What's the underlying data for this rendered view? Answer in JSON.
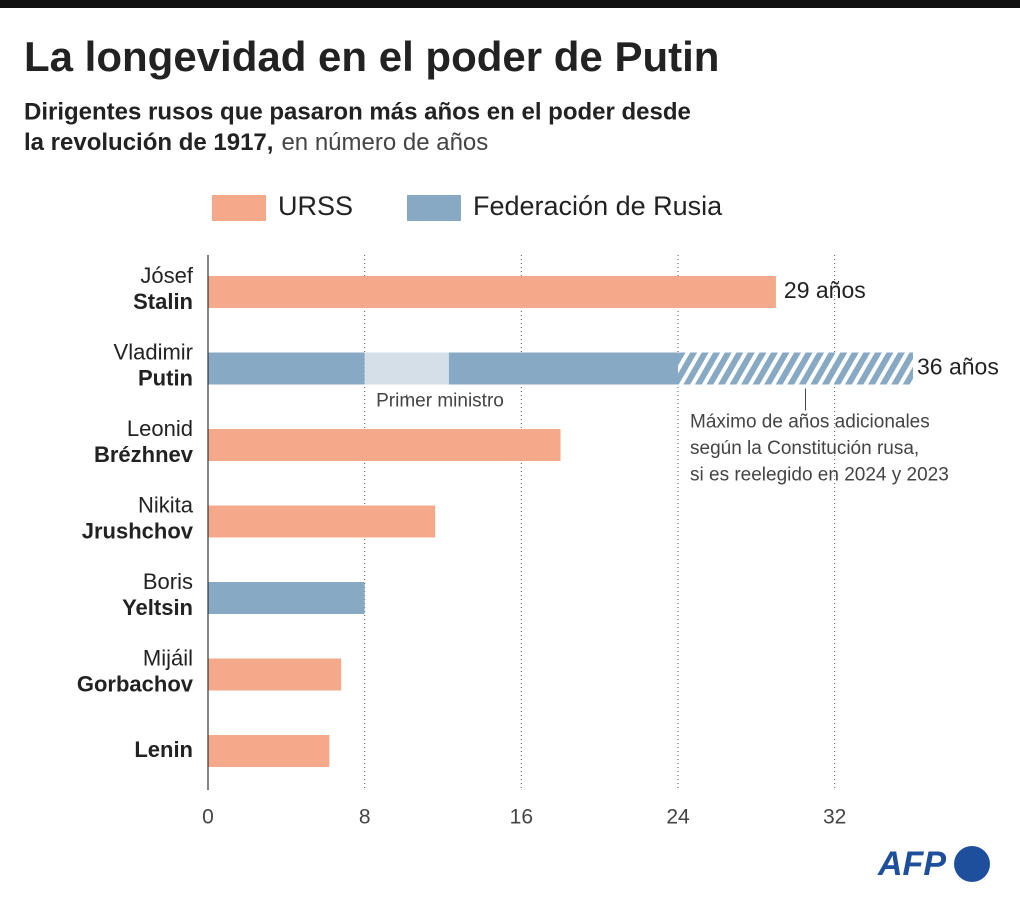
{
  "chart_data": {
    "type": "bar",
    "title": "La longevidad en el poder de Putin",
    "subtitle_bold": [
      "Dirigentes rusos que pasaron más años en el poder desde",
      "la revolución de 1917,"
    ],
    "subtitle_light": "en número de años",
    "categories": [
      {
        "first": "Jósef",
        "last": "Stalin"
      },
      {
        "first": "Vladimir",
        "last": "Putin",
        "total_label": "36 años",
        "segments": [
          {
            "value": 4.3,
            "color": "#d4dfe8",
            "label": "Primer ministro"
          },
          {
            "value": 11.7,
            "color": "#88a9c4"
          },
          {
            "value": 12,
            "color": "#88a9c4",
            "pattern": "hatch",
            "label": [
              "Máximo de años adicionales",
              "según la Constitución rusa,",
              "si es reelegido en 2024 y 2023"
            ]
          }
        ]
      },
      {
        "first": "Leonid",
        "last": "Brézhnev"
      },
      {
        "first": "Nikita",
        "last": "Jrushchov"
      },
      {
        "first": "Boris",
        "last": "Yeltsin"
      },
      {
        "first": "Mijáil",
        "last": "Gorbachov"
      },
      {
        "last": "Lenin"
      }
    ],
    "series": [
      {
        "name": "URSS",
        "color": "#f4a98b",
        "values": [
          29,
          null,
          18,
          11.6,
          null,
          6.8,
          6.2
        ],
        "value_labels": [
          "29 años",
          null,
          null,
          null,
          null,
          null,
          null
        ]
      },
      {
        "name": "Federación de Rusia",
        "color": "#88a9c4",
        "values": [
          null,
          8,
          null,
          null,
          8,
          null,
          null
        ]
      }
    ],
    "xlim": [
      0,
      36
    ],
    "xticks": [
      0,
      8,
      16,
      24,
      32
    ],
    "grid": true,
    "logo": "AFP"
  }
}
